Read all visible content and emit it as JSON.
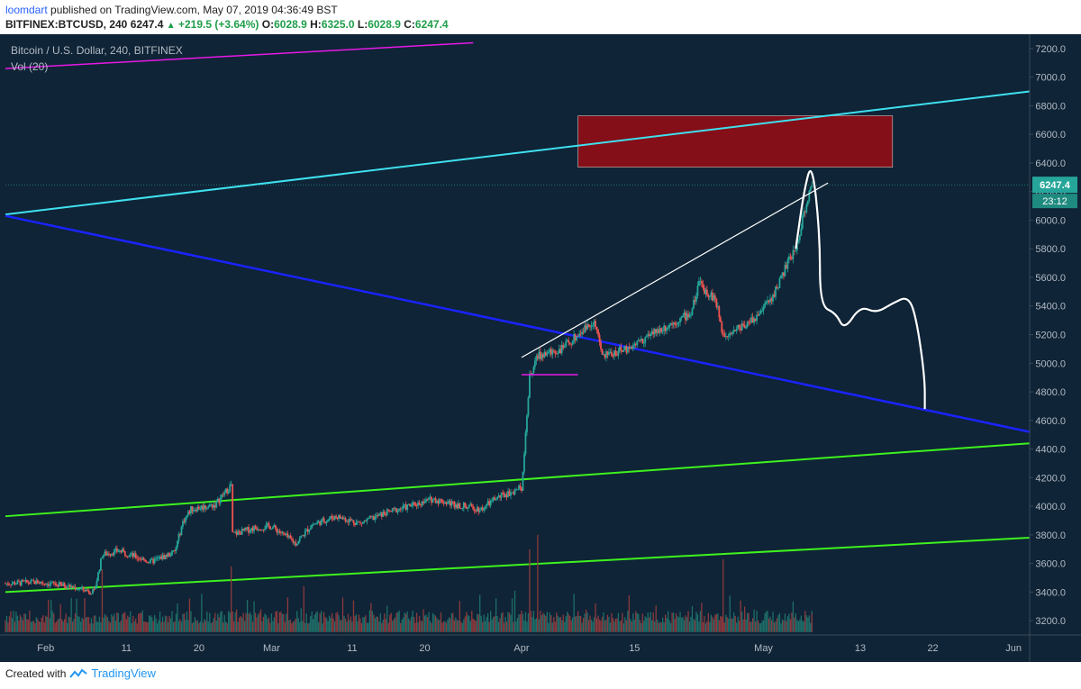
{
  "header": {
    "author": "loomdart",
    "published_text": "published on TradingView.com, May 07, 2019 04:36:49 BST",
    "symbol": "BITFINEX:BTCUSD, 240",
    "last": "6247.4",
    "change": "+219.5 (+3.64%)",
    "open_label": "O:",
    "open": "6028.9",
    "high_label": "H:",
    "high": "6325.0",
    "low_label": "L:",
    "low": "6028.9",
    "close_label": "C:",
    "close": "6247.4"
  },
  "chart_legend": {
    "title": "Bitcoin / U.S. Dollar, 240, BITFINEX",
    "volume": "Vol (20)"
  },
  "price_tag": {
    "price": "6247.4",
    "countdown": "23:12"
  },
  "footer": {
    "created_with": "Created with",
    "brand": "TradingView"
  },
  "colors": {
    "background": "#0f2436",
    "up": "#26a69a",
    "down": "#ef5350",
    "cyan_line": "#3fe0ef",
    "blue_line": "#1a23ff",
    "green_line": "#3ef21e",
    "magenta_line": "#e619e6",
    "zone_fill": "#8b0f17",
    "axis_text": "#b3bac4"
  },
  "chart_data": {
    "type": "candlestick",
    "title": "Bitcoin / U.S. Dollar, 240, BITFINEX",
    "x_ticks": [
      "Feb",
      "11",
      "20",
      "Mar",
      "11",
      "20",
      "Apr",
      "15",
      "May",
      "13",
      "22",
      "Jun"
    ],
    "y_ticks": [
      3200,
      3400,
      3600,
      3800,
      4000,
      4200,
      4400,
      4600,
      4800,
      5000,
      5200,
      5400,
      5600,
      5800,
      6000,
      6200,
      6400,
      6600,
      6800,
      7000,
      7200
    ],
    "y_tick_labels": [
      "3200.0",
      "3400.0",
      "3600.0",
      "3800.0",
      "4000.0",
      "4200.0",
      "4400.0",
      "4600.0",
      "4800.0",
      "5000.0",
      "5200.0",
      "5400.0",
      "5600.0",
      "5800.0",
      "6000.0",
      "6200.0",
      "6400.0",
      "6600.0",
      "6800.0",
      "7000.0",
      "7200.0"
    ],
    "ylim": [
      3100,
      7300
    ],
    "x_range": [
      "2019-01-27",
      "2019-06-03"
    ],
    "price_path": [
      [
        "2019-01-27",
        3460
      ],
      [
        "2019-01-31",
        3470
      ],
      [
        "2019-02-04",
        3440
      ],
      [
        "2019-02-07",
        3400
      ],
      [
        "2019-02-08",
        3660
      ],
      [
        "2019-02-10",
        3690
      ],
      [
        "2019-02-14",
        3610
      ],
      [
        "2019-02-17",
        3680
      ],
      [
        "2019-02-18",
        3890
      ],
      [
        "2019-02-19",
        3980
      ],
      [
        "2019-02-20",
        3990
      ],
      [
        "2019-02-22",
        4010
      ],
      [
        "2019-02-24",
        4150
      ],
      [
        "2019-02-24",
        3800
      ],
      [
        "2019-02-27",
        3850
      ],
      [
        "2019-03-01",
        3860
      ],
      [
        "2019-03-04",
        3740
      ],
      [
        "2019-03-06",
        3870
      ],
      [
        "2019-03-09",
        3930
      ],
      [
        "2019-03-12",
        3880
      ],
      [
        "2019-03-15",
        3950
      ],
      [
        "2019-03-18",
        4000
      ],
      [
        "2019-03-21",
        4050
      ],
      [
        "2019-03-24",
        4010
      ],
      [
        "2019-03-27",
        3980
      ],
      [
        "2019-03-29",
        4060
      ],
      [
        "2019-04-01",
        4130
      ],
      [
        "2019-04-02",
        4900
      ],
      [
        "2019-04-03",
        5050
      ],
      [
        "2019-04-06",
        5100
      ],
      [
        "2019-04-09",
        5250
      ],
      [
        "2019-04-10",
        5300
      ],
      [
        "2019-04-11",
        5050
      ],
      [
        "2019-04-14",
        5100
      ],
      [
        "2019-04-17",
        5200
      ],
      [
        "2019-04-20",
        5290
      ],
      [
        "2019-04-22",
        5350
      ],
      [
        "2019-04-23",
        5550
      ],
      [
        "2019-04-25",
        5450
      ],
      [
        "2019-04-26",
        5200
      ],
      [
        "2019-04-28",
        5250
      ],
      [
        "2019-04-30",
        5320
      ],
      [
        "2019-05-02",
        5450
      ],
      [
        "2019-05-04",
        5700
      ],
      [
        "2019-05-05",
        5800
      ],
      [
        "2019-05-06",
        6050
      ],
      [
        "2019-05-07",
        6247
      ]
    ],
    "volume_path": [
      [
        "2019-02-08",
        3560
      ],
      [
        "2019-02-24",
        3580
      ],
      [
        "2019-04-02",
        3700
      ],
      [
        "2019-04-03",
        3800
      ],
      [
        "2019-04-26",
        3630
      ],
      [
        "2019-05-07",
        3250
      ]
    ],
    "annotations": {
      "resistance_zone": {
        "x0": "2019-04-08",
        "x1": "2019-05-17",
        "y0": 6370,
        "y1": 6730
      },
      "cyan_trendline": [
        [
          "2019-01-27",
          6040
        ],
        [
          "2019-06-03",
          6900
        ]
      ],
      "blue_trendline": [
        [
          "2019-01-27",
          6030
        ],
        [
          "2019-06-03",
          4520
        ]
      ],
      "green_channel_upper": [
        [
          "2019-01-27",
          3930
        ],
        [
          "2019-06-03",
          4440
        ]
      ],
      "green_channel_lower": [
        [
          "2019-01-27",
          3400
        ],
        [
          "2019-06-03",
          3780
        ]
      ],
      "magenta_line": [
        [
          "2019-01-27",
          7060
        ],
        [
          "2019-03-26",
          7240
        ]
      ],
      "magenta_short_line": [
        [
          "2019-04-01",
          4920
        ],
        [
          "2019-04-08",
          4920
        ]
      ],
      "white_trendline": [
        [
          "2019-04-01",
          5040
        ],
        [
          "2019-05-09",
          6260
        ]
      ],
      "projection_path": [
        [
          "2019-05-05",
          5800
        ],
        [
          "2019-05-06",
          6200
        ],
        [
          "2019-05-07",
          6420
        ],
        [
          "2019-05-08",
          5900
        ],
        [
          "2019-05-08",
          5400
        ],
        [
          "2019-05-10",
          5350
        ],
        [
          "2019-05-11",
          5230
        ],
        [
          "2019-05-13",
          5400
        ],
        [
          "2019-05-15",
          5350
        ],
        [
          "2019-05-17",
          5420
        ],
        [
          "2019-05-19",
          5470
        ],
        [
          "2019-05-20",
          5300
        ],
        [
          "2019-05-21",
          4900
        ],
        [
          "2019-05-21",
          4680
        ]
      ]
    }
  }
}
